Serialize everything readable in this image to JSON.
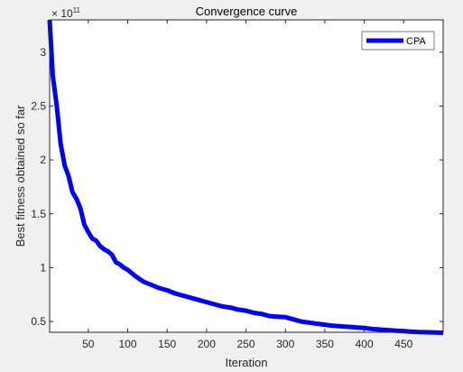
{
  "chart_data": {
    "type": "line",
    "title": "Convergence curve",
    "xlabel": "Iteration",
    "ylabel": "Best fitness obtained so far",
    "y_exponent_base": "× 10",
    "y_exponent_power": "11",
    "xlim": [
      1,
      500
    ],
    "ylim": [
      0.4,
      3.3
    ],
    "xticks": [
      50,
      100,
      150,
      200,
      250,
      300,
      350,
      400,
      450
    ],
    "xtick_labels": [
      "50",
      "100",
      "150",
      "200",
      "250",
      "300",
      "350",
      "400",
      "450"
    ],
    "yticks": [
      0.5,
      1,
      1.5,
      2,
      2.5,
      3
    ],
    "ytick_labels": [
      "0.5",
      "1",
      "1.5",
      "2",
      "2.5",
      "3"
    ],
    "grid": false,
    "legend_position": "top-right",
    "series": [
      {
        "name": "CPA",
        "color": "#0000ff",
        "x": [
          1,
          5,
          10,
          15,
          20,
          25,
          30,
          35,
          40,
          45,
          50,
          55,
          60,
          65,
          70,
          75,
          80,
          85,
          90,
          95,
          100,
          110,
          120,
          130,
          140,
          150,
          160,
          170,
          180,
          190,
          200,
          210,
          220,
          230,
          240,
          250,
          260,
          270,
          280,
          290,
          300,
          310,
          320,
          330,
          340,
          350,
          360,
          370,
          380,
          390,
          400,
          410,
          420,
          430,
          440,
          450,
          460,
          470,
          480,
          490,
          500
        ],
        "y": [
          3.3,
          2.78,
          2.5,
          2.15,
          1.95,
          1.85,
          1.7,
          1.64,
          1.55,
          1.4,
          1.33,
          1.27,
          1.25,
          1.2,
          1.17,
          1.15,
          1.12,
          1.05,
          1.03,
          1.0,
          0.98,
          0.92,
          0.87,
          0.84,
          0.81,
          0.79,
          0.76,
          0.74,
          0.72,
          0.7,
          0.68,
          0.66,
          0.64,
          0.63,
          0.61,
          0.6,
          0.58,
          0.57,
          0.55,
          0.545,
          0.54,
          0.52,
          0.5,
          0.49,
          0.48,
          0.47,
          0.46,
          0.455,
          0.45,
          0.445,
          0.44,
          0.43,
          0.425,
          0.42,
          0.415,
          0.41,
          0.405,
          0.402,
          0.4,
          0.398,
          0.395
        ]
      }
    ]
  }
}
